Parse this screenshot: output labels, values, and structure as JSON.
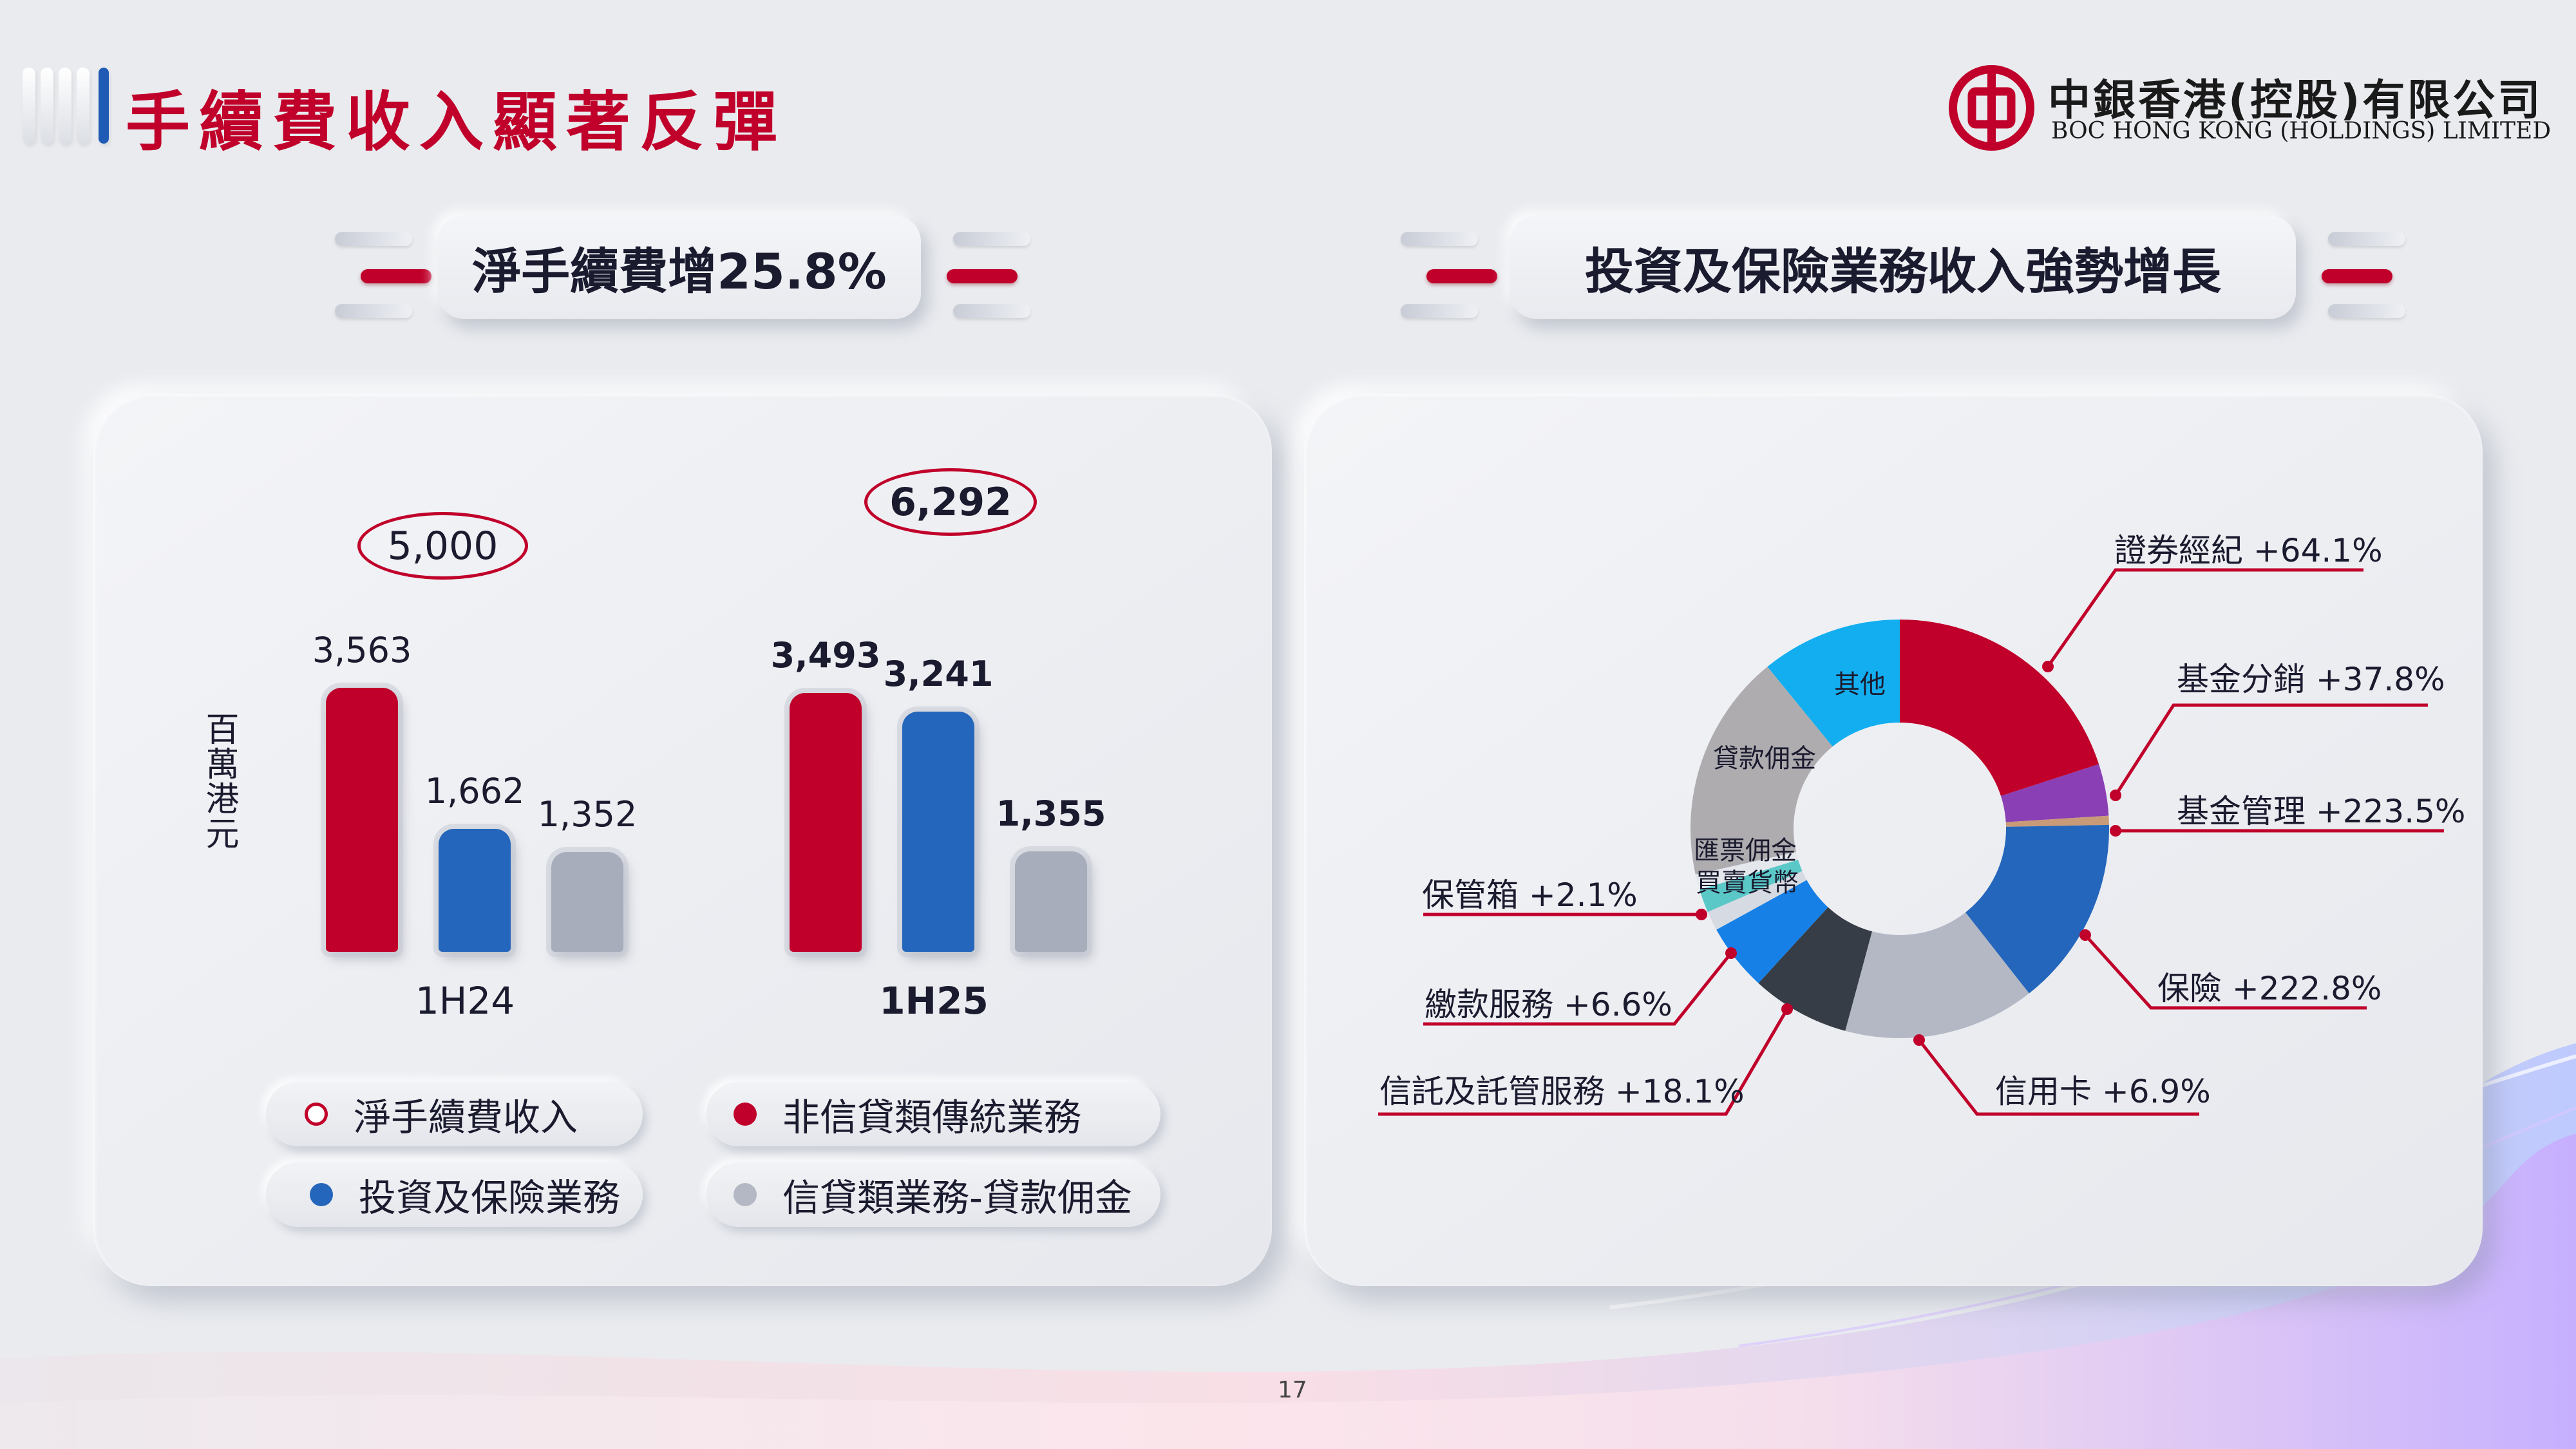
{
  "header": {
    "title": "手續費收入顯著反彈",
    "logo_cn": "中銀香港(控股)有限公司",
    "logo_en": "BOC HONG KONG (HOLDINGS) LIMITED"
  },
  "left_section": {
    "heading": "淨手續費增25.8%"
  },
  "right_section": {
    "heading": "投資及保險業務收入強勢增長"
  },
  "colors": {
    "brand_red": "#c0002a",
    "blue": "#2466bb",
    "grey": "#a7adbb"
  },
  "chart_data": [
    {
      "type": "bar",
      "ylabel": "百萬港元",
      "categories": [
        "1H24",
        "1H25"
      ],
      "totals": {
        "label": "淨手續費收入",
        "values": [
          5000,
          6292
        ],
        "display": [
          "5,000",
          "6,292"
        ]
      },
      "series": [
        {
          "name": "非信貸類傳統業務",
          "color": "#c0002a",
          "values": [
            3563,
            3493
          ],
          "display": [
            "3,563",
            "3,493"
          ]
        },
        {
          "name": "投資及保險業務",
          "color": "#2466bb",
          "values": [
            1662,
            3241
          ],
          "display": [
            "1,662",
            "3,241"
          ]
        },
        {
          "name": "信貸類業務-貸款佣金",
          "color": "#a7adbb",
          "values": [
            1352,
            1355
          ],
          "display": [
            "1,352",
            "1,355"
          ]
        }
      ],
      "legend": [
        {
          "label": "淨手續費收入",
          "marker": "hollow",
          "color": "#c0002a"
        },
        {
          "label": "非信貸類傳統業務",
          "marker": "filled",
          "color": "#c0002a"
        },
        {
          "label": "投資及保險業務",
          "marker": "filled",
          "color": "#2466bb"
        },
        {
          "label": "信貸類業務-貸款佣金",
          "marker": "filled",
          "color": "#a7adbb"
        }
      ]
    },
    {
      "type": "pie",
      "donut": true,
      "segments": [
        {
          "name": "證券經紀",
          "growth": "+64.1%",
          "share": 0.2,
          "color": "#c0002a"
        },
        {
          "name": "基金分銷",
          "growth": "+37.8%",
          "share": 0.04,
          "color": "#8a3fb5"
        },
        {
          "name": "基金管理",
          "growth": "+223.5%",
          "share": 0.007,
          "color": "#c89a78"
        },
        {
          "name": "保險",
          "growth": "+222.8%",
          "share": 0.147,
          "color": "#2466bb"
        },
        {
          "name": "信用卡",
          "growth": "+6.9%",
          "share": 0.148,
          "color": "#b3b8c4"
        },
        {
          "name": "信託及託管服務",
          "growth": "+18.1%",
          "share": 0.076,
          "color": "#373d46"
        },
        {
          "name": "繳款服務",
          "growth": "+6.6%",
          "share": 0.052,
          "color": "#1680e6"
        },
        {
          "name": "保管箱",
          "growth": "+2.1%",
          "share": 0.015,
          "color": "#d6dae2"
        },
        {
          "name": "買賣貨幣",
          "growth": "",
          "share": 0.018,
          "color": "#5bc8c8"
        },
        {
          "name": "匯票佣金",
          "growth": "",
          "share": 0.012,
          "color": "#e4e7ec"
        },
        {
          "name": "貸款佣金",
          "growth": "",
          "share": 0.176,
          "color": "#aeacaf"
        },
        {
          "name": "其他",
          "growth": "",
          "share": 0.109,
          "color": "#12aef0"
        }
      ]
    }
  ],
  "page_number": "17"
}
